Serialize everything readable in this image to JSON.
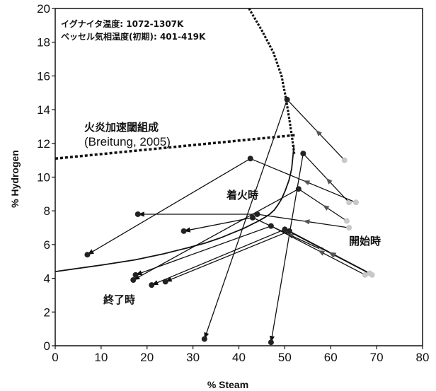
{
  "chart_data": {
    "type": "line",
    "xlabel": "% Steam",
    "ylabel": "% Hydrogen",
    "xlim": [
      0,
      80
    ],
    "ylim": [
      0,
      20
    ],
    "xticks": [
      "0",
      "10",
      "20",
      "30",
      "40",
      "50",
      "60",
      "70",
      "80"
    ],
    "yticks": [
      "0",
      "2",
      "4",
      "6",
      "8",
      "10",
      "12",
      "14",
      "16",
      "18",
      "20"
    ],
    "grid": false,
    "annotations": {
      "igniter_temp": "イグナイタ温度: 1072-1307K",
      "vessel_temp": "ベッセル気相温度(初期):   401-419K",
      "flame_accel_line_1": "火炎加速閾組成",
      "flame_accel_line_2": "(Breitung, 2005)",
      "ignition": "着火時",
      "start": "開始時",
      "end": "終了時"
    },
    "flammability_limit": {
      "x": [
        52.0,
        51.5,
        50.9,
        50.1,
        49.3,
        48.5,
        47.7,
        46.7,
        45.6,
        44.3,
        42.8,
        41.0,
        38.7,
        36.0,
        32.8,
        28.7,
        23.6,
        17.5,
        10.5,
        0
      ],
      "y": [
        11.9,
        10.5,
        9.8,
        9.2,
        8.7,
        8.35,
        8.05,
        7.8,
        7.6,
        7.4,
        7.2,
        6.95,
        6.7,
        6.4,
        6.1,
        5.8,
        5.45,
        5.1,
        4.8,
        4.4
      ]
    },
    "flame_acceleration_threshold": {
      "x": [
        0,
        52.5
      ],
      "y": [
        11.1,
        12.5
      ]
    },
    "vertical_limit": {
      "x": [
        42.2,
        45.0,
        47.5,
        49.3,
        50.3,
        51.0,
        51.6,
        52.1
      ],
      "y": [
        20.0,
        18.7,
        17.4,
        16.0,
        14.6,
        13.4,
        12.3,
        11.3
      ]
    },
    "trajectories": [
      {
        "x": [
          63.0,
          50.5,
          32.5
        ],
        "y": [
          11.0,
          14.6,
          0.4
        ]
      },
      {
        "x": [
          64.0,
          54.0,
          47.0
        ],
        "y": [
          8.5,
          11.4,
          0.2
        ]
      },
      {
        "x": [
          65.5,
          42.5,
          7.0
        ],
        "y": [
          8.5,
          11.1,
          5.4
        ]
      },
      {
        "x": [
          63.5,
          53.0,
          17.0
        ],
        "y": [
          7.4,
          9.3,
          3.9
        ]
      },
      {
        "x": [
          64.0,
          44.0,
          18.0
        ],
        "y": [
          7.0,
          7.8,
          7.8
        ]
      },
      {
        "x": [
          58.0,
          43.0,
          28.0
        ],
        "y": [
          5.7,
          7.6,
          6.8
        ]
      },
      {
        "x": [
          67.5,
          47.0,
          17.5
        ],
        "y": [
          4.2,
          7.1,
          4.2
        ]
      },
      {
        "x": [
          69.0,
          50.0,
          21.0
        ],
        "y": [
          4.2,
          6.9,
          3.6
        ]
      },
      {
        "x": [
          68.5,
          51.0,
          24.0
        ],
        "y": [
          4.3,
          6.8,
          3.8
        ]
      }
    ]
  }
}
